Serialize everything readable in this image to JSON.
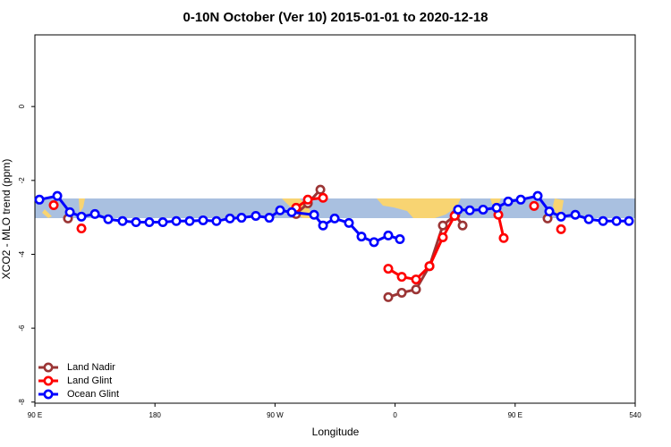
{
  "chart_data": {
    "type": "line",
    "title": "0-10N October (Ver 10)   2015-01-01 to 2020-12-18",
    "x_label": "Longitude",
    "y_label": "XCO2 - MLO trend (ppm)",
    "xlim": [
      90,
      540
    ],
    "xticks": [
      {
        "value": 90,
        "label": "90 E"
      },
      180,
      {
        "value": 270,
        "label": "90 W"
      },
      {
        "value": 360,
        "label": "0"
      },
      {
        "value": 450,
        "label": "90 E"
      },
      540
    ],
    "ylim": [
      -8.03,
      1.94
    ],
    "yticks": [
      0,
      -2,
      -4,
      -6,
      -8
    ],
    "legend": "bottom-left",
    "series": [
      {
        "name": "Land Nadir",
        "color": "#9b3535",
        "x": [
          114.8,
          null,
          285.8,
          294.6,
          304.0,
          null,
          354.9,
          365.0,
          375.7,
          385.8,
          395.8,
          405.2,
          410.6,
          null,
          474.3
        ],
        "values": [
          -3.03,
          null,
          -2.91,
          -2.62,
          -2.25,
          null,
          -5.16,
          -5.04,
          -4.95,
          -4.32,
          -3.22,
          -2.93,
          -3.22,
          null,
          -3.03
        ]
      },
      {
        "name": "Land Glint",
        "color": "#ff0000",
        "x": [
          104.1,
          null,
          124.9,
          null,
          285.8,
          294.6,
          306.0,
          null,
          354.9,
          365.0,
          375.7,
          385.8,
          395.8,
          404.6,
          null,
          437.4,
          441.4,
          null,
          464.2,
          null,
          484.4
        ],
        "values": [
          -2.67,
          null,
          -3.3,
          null,
          -2.74,
          -2.52,
          -2.47,
          null,
          -4.39,
          -4.61,
          -4.68,
          -4.32,
          -3.54,
          -2.96,
          null,
          -2.93,
          -3.56,
          null,
          -2.69,
          null,
          -3.32
        ]
      },
      {
        "name": "Ocean Glint",
        "color": "#0000ff",
        "x": [
          93.4,
          106.8,
          116.2,
          124.9,
          135.0,
          145.0,
          155.7,
          165.8,
          175.8,
          185.9,
          196.0,
          206.0,
          216.1,
          226.1,
          236.2,
          244.9,
          255.6,
          265.7,
          273.8,
          282.5,
          299.3,
          306.0,
          314.7,
          325.4,
          334.8,
          344.2,
          354.9,
          363.6,
          null,
          407.2,
          416.0,
          426.0,
          436.1,
          444.8,
          454.2,
          466.9,
          475.6,
          484.4,
          495.1,
          505.2,
          515.9,
          526.0,
          535.3
        ],
        "values": [
          -2.52,
          -2.42,
          -2.86,
          -2.98,
          -2.91,
          -3.05,
          -3.1,
          -3.13,
          -3.13,
          -3.13,
          -3.1,
          -3.1,
          -3.08,
          -3.1,
          -3.03,
          -3.01,
          -2.96,
          -3.01,
          -2.81,
          -2.86,
          -2.93,
          -3.22,
          -3.03,
          -3.15,
          -3.52,
          -3.67,
          -3.49,
          -3.59,
          null,
          -2.79,
          -2.81,
          -2.79,
          -2.74,
          -2.57,
          -2.52,
          -2.42,
          -2.84,
          -2.98,
          -2.93,
          -3.05,
          -3.1,
          -3.1,
          -3.1
        ]
      }
    ]
  }
}
